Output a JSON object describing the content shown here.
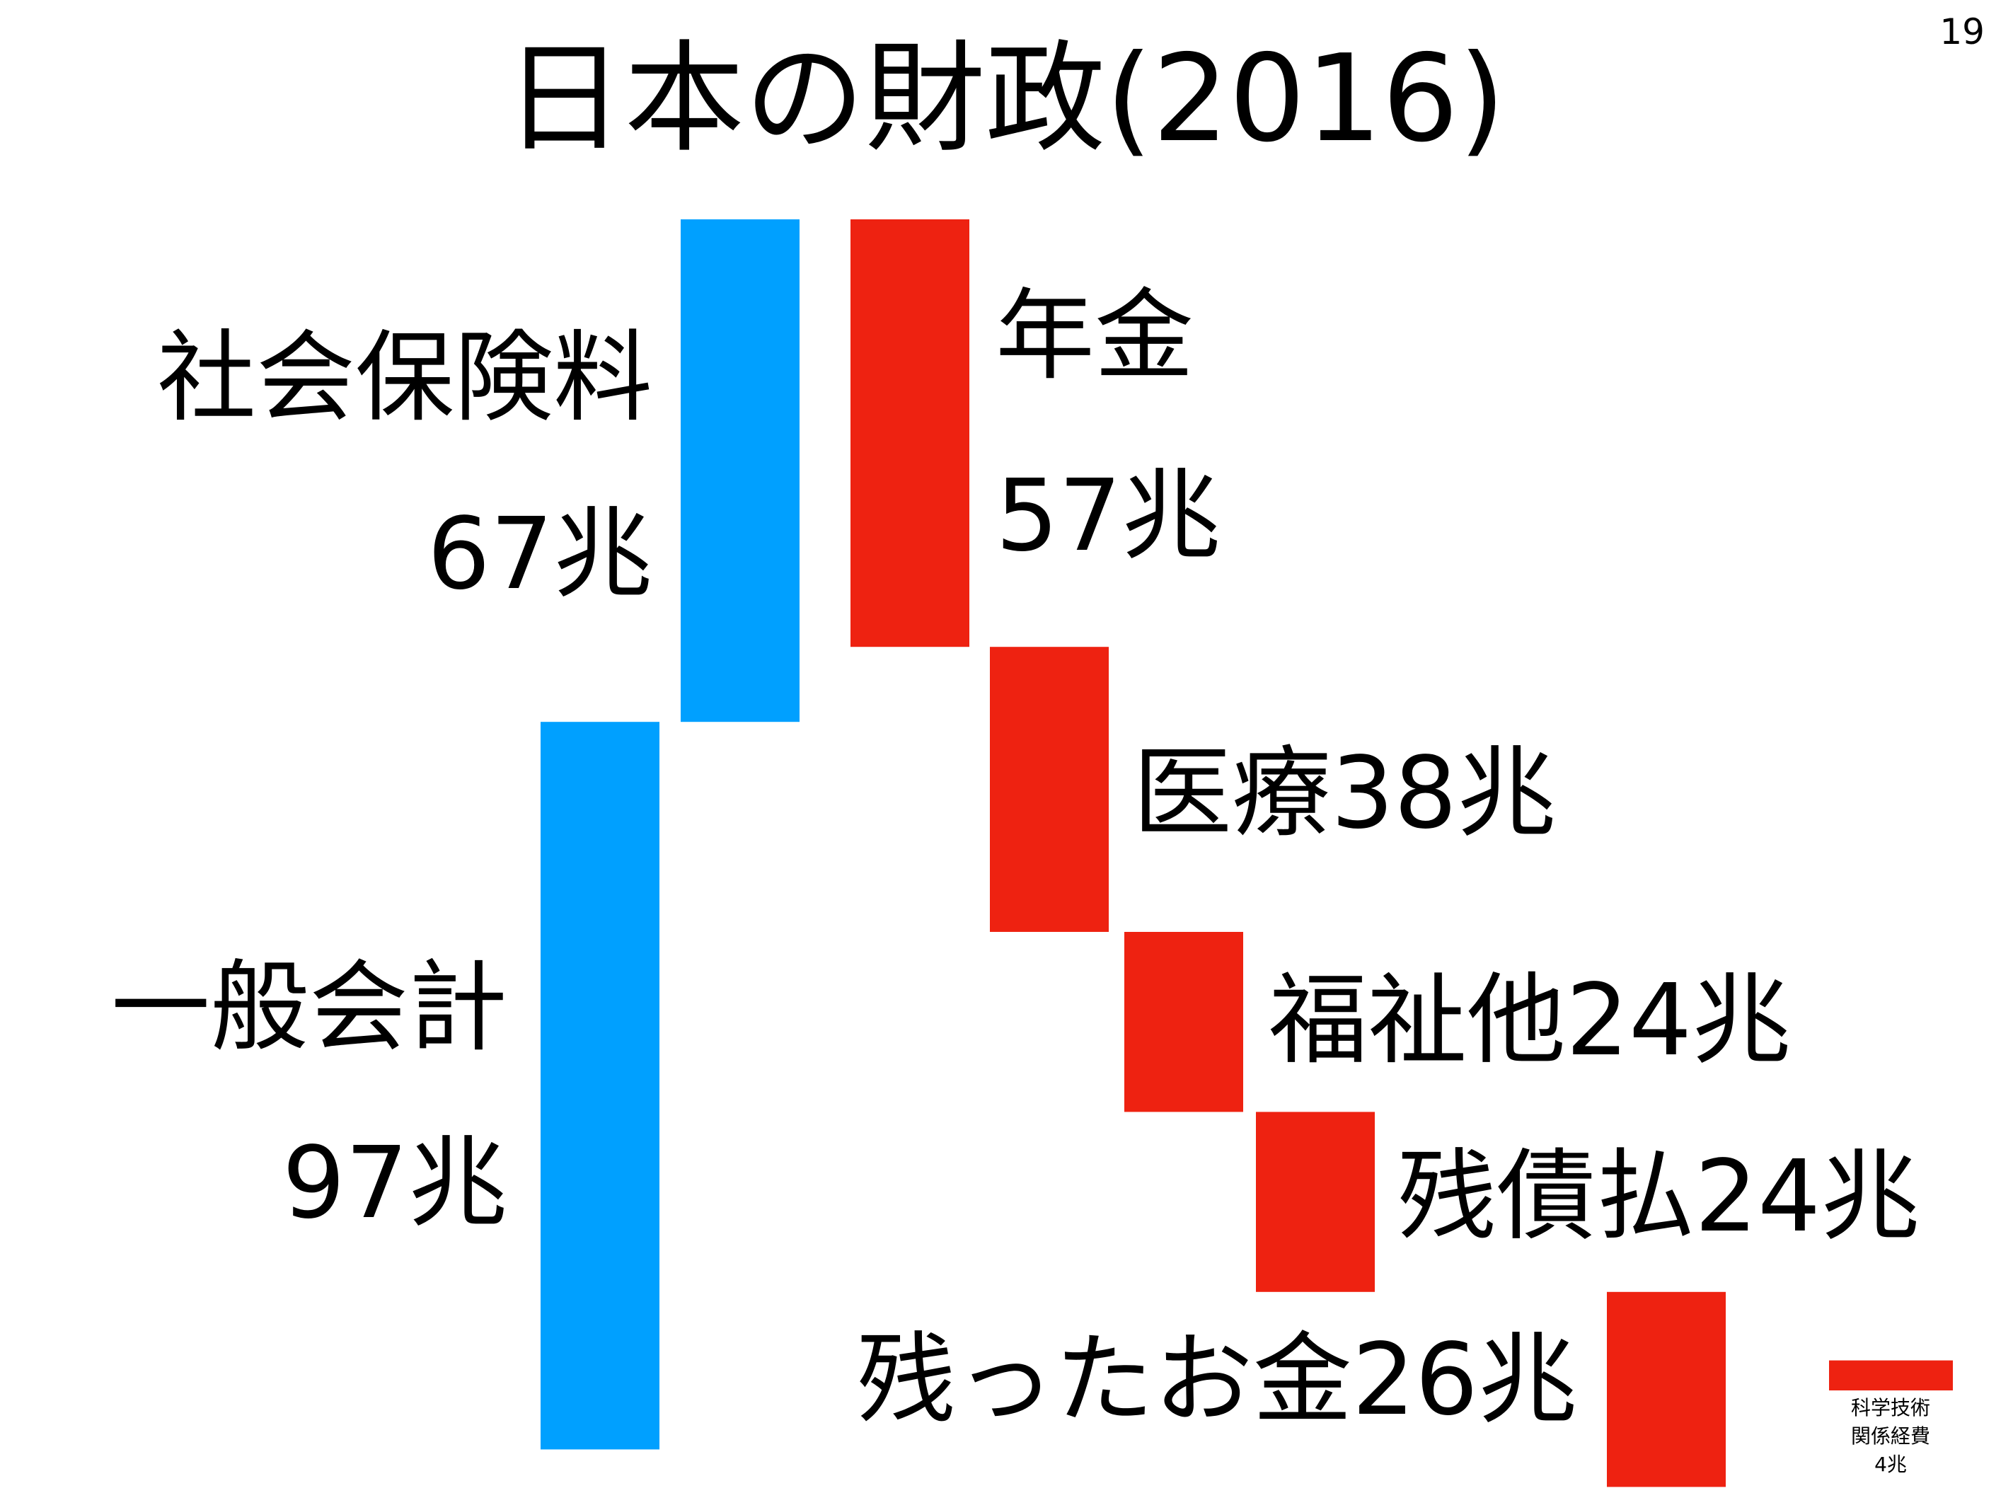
{
  "page_number": 19,
  "chart_data": {
    "type": "waterfall",
    "title": "日本の財政(2016)",
    "income": {
      "categories": [
        "社会保険料",
        "一般会計"
      ],
      "values": [
        67,
        97
      ],
      "value_labels": [
        "67兆",
        "97兆"
      ],
      "color": "#00a0ff"
    },
    "spending": {
      "categories": [
        "年金",
        "医療",
        "福祉他",
        "残債払",
        "残ったお金",
        "科学技術関係経費"
      ],
      "values": [
        57,
        38,
        24,
        24,
        26,
        4
      ],
      "value_labels": [
        "57兆",
        "38兆",
        "24兆",
        "24兆",
        "26兆",
        "4兆"
      ],
      "color": "#ee2211"
    }
  }
}
